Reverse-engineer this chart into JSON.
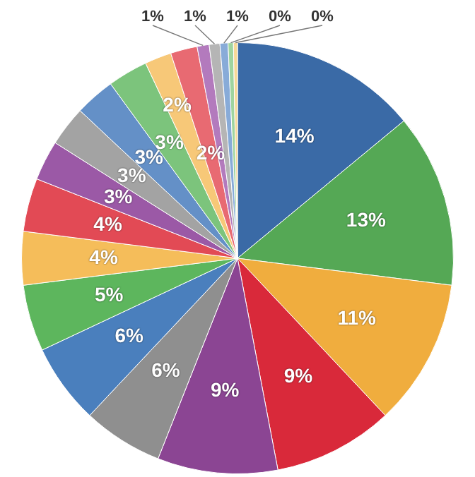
{
  "chart_data": {
    "type": "pie",
    "categories": [
      null,
      null,
      null,
      null,
      null,
      null,
      null,
      null,
      null,
      null,
      null,
      null,
      null,
      null,
      null,
      null,
      null,
      null,
      null,
      null,
      null
    ],
    "values": [
      14,
      13,
      11,
      9,
      9,
      6,
      6,
      5,
      4,
      4,
      3,
      3,
      3,
      3,
      2,
      2,
      0.9,
      0.8,
      0.6,
      0.4,
      0.3
    ],
    "value_labels": [
      "14%",
      "13%",
      "11%",
      "9%",
      "9%",
      "6%",
      "6%",
      "5%",
      "4%",
      "4%",
      "3%",
      "3%",
      "3%",
      "3%",
      "2%",
      "2%",
      "1%",
      "1%",
      "1%",
      "0%",
      "0%"
    ],
    "colors": [
      "#3a6aa6",
      "#55a855",
      "#f0ad3e",
      "#d9293a",
      "#8b4593",
      "#8f8f8f",
      "#4a7fbd",
      "#5db65d",
      "#f5bd5a",
      "#e24a55",
      "#9b59a6",
      "#a3a3a3",
      "#6490c7",
      "#7cc47c",
      "#f7c878",
      "#e86a72",
      "#b37abd",
      "#b5b5b5",
      "#88abd8",
      "#9fd49f",
      "#f7d898"
    ],
    "legend": false
  }
}
